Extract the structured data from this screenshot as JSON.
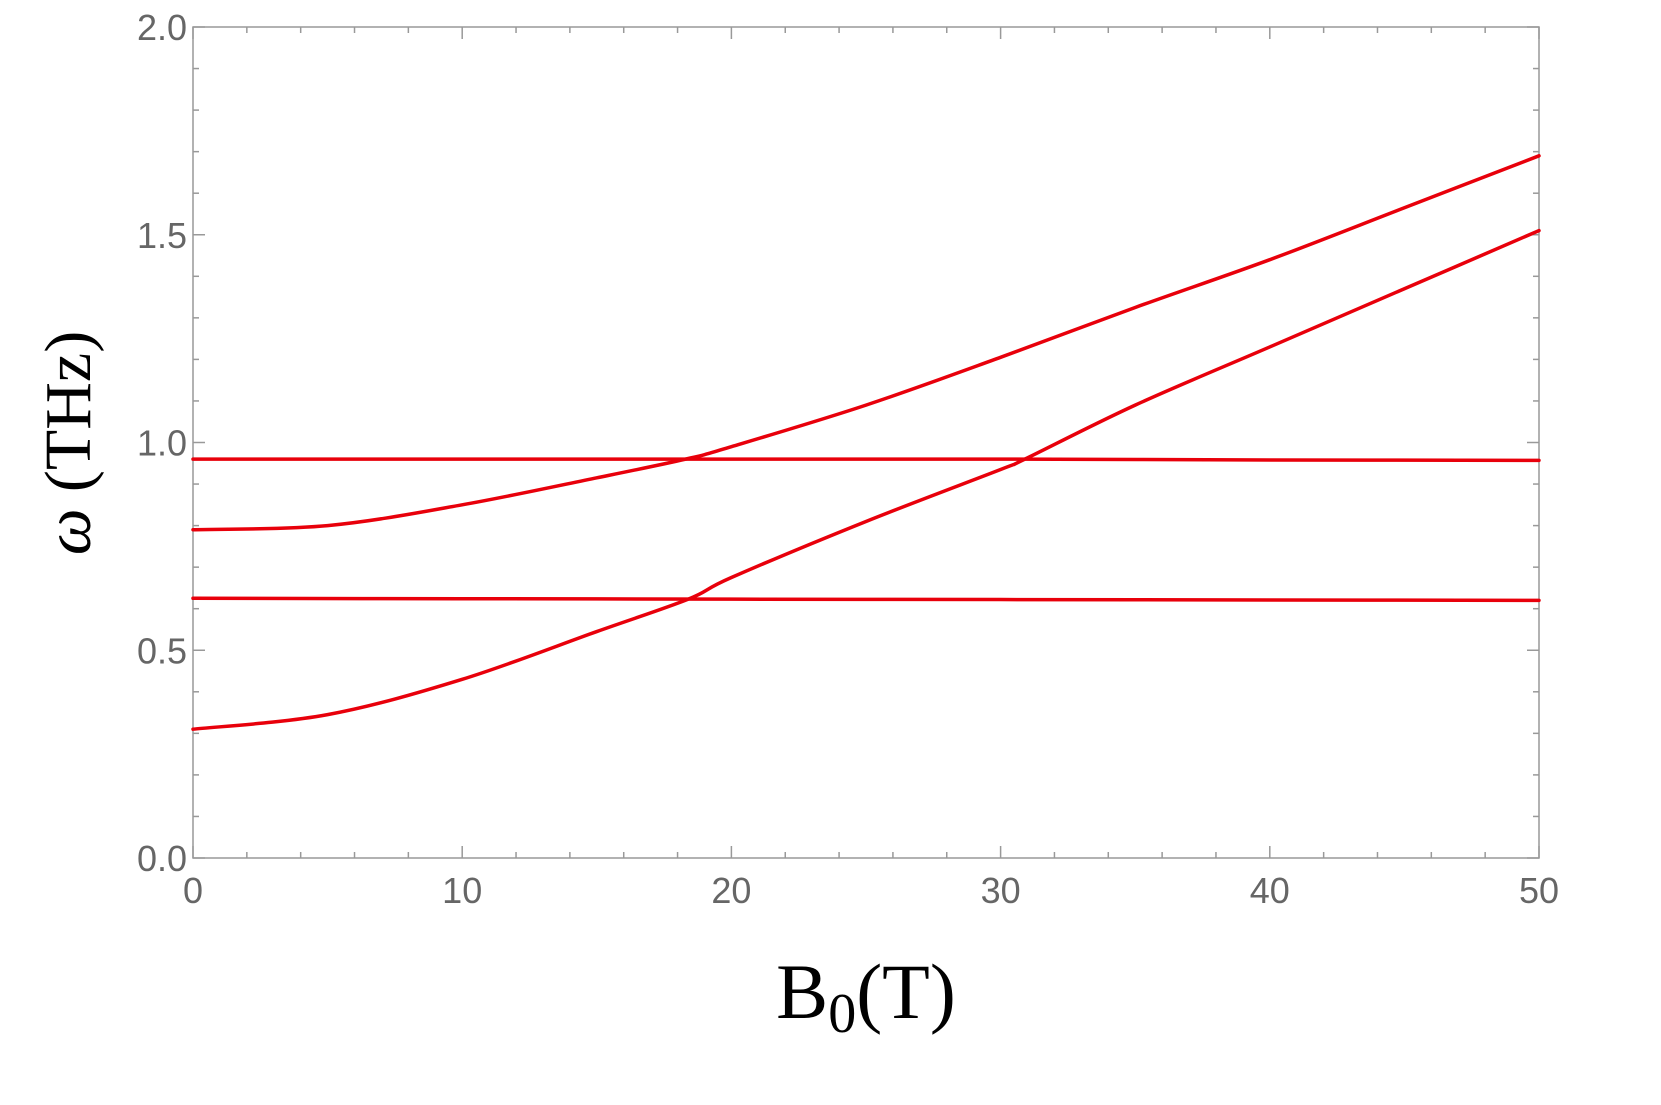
{
  "chart_data": {
    "type": "line",
    "xlabel": "B",
    "xlabel_sub": "0",
    "xlabel_unit": "(T)",
    "ylabel_symbol": "ω",
    "ylabel_unit": "(THz)",
    "xlim": [
      0,
      50
    ],
    "ylim": [
      0.0,
      2.0
    ],
    "x_ticks": [
      0,
      10,
      20,
      30,
      40,
      50
    ],
    "x_tick_labels": [
      "0",
      "10",
      "20",
      "30",
      "40",
      "50"
    ],
    "y_ticks": [
      0.0,
      0.5,
      1.0,
      1.5,
      2.0
    ],
    "y_tick_labels": [
      "0.0",
      "0.5",
      "1.0",
      "1.5",
      "2.0"
    ],
    "x_minor_step": 2,
    "y_minor_step": 0.1,
    "grid": false,
    "line_color": "#e8000b",
    "series": [
      {
        "x": [
          0,
          10,
          20,
          30,
          40,
          50
        ],
        "y": [
          0.96,
          0.96,
          0.96,
          0.96,
          0.958,
          0.957
        ]
      },
      {
        "x": [
          0,
          10,
          20,
          30,
          40,
          50
        ],
        "y": [
          0.625,
          0.624,
          0.623,
          0.622,
          0.621,
          0.62
        ]
      },
      {
        "x": [
          0,
          5,
          10,
          15,
          18.3,
          20,
          25,
          30,
          35,
          40,
          45,
          50
        ],
        "y": [
          0.79,
          0.8,
          0.85,
          0.915,
          0.96,
          0.99,
          1.09,
          1.205,
          1.325,
          1.44,
          1.565,
          1.69
        ]
      },
      {
        "x": [
          0,
          5,
          10,
          15,
          18.4,
          20,
          25,
          30,
          30.9,
          35,
          40,
          45,
          50
        ],
        "y": [
          0.31,
          0.345,
          0.43,
          0.545,
          0.623,
          0.675,
          0.81,
          0.935,
          0.96,
          1.09,
          1.23,
          1.37,
          1.51
        ]
      }
    ]
  }
}
